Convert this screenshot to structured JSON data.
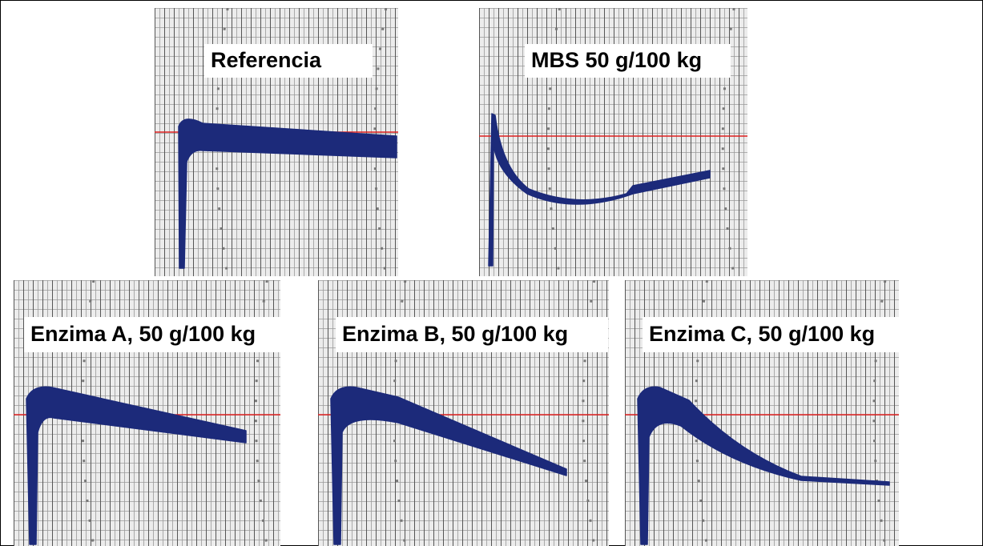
{
  "panels": [
    {
      "label": "Referencia"
    },
    {
      "label": "MBS 50 g/100 kg"
    },
    {
      "label": "Enzima A, 50 g/100 kg"
    },
    {
      "label": "Enzima B, 50 g/100 kg"
    },
    {
      "label": "Enzima C, 50 g/100 kg"
    }
  ]
}
